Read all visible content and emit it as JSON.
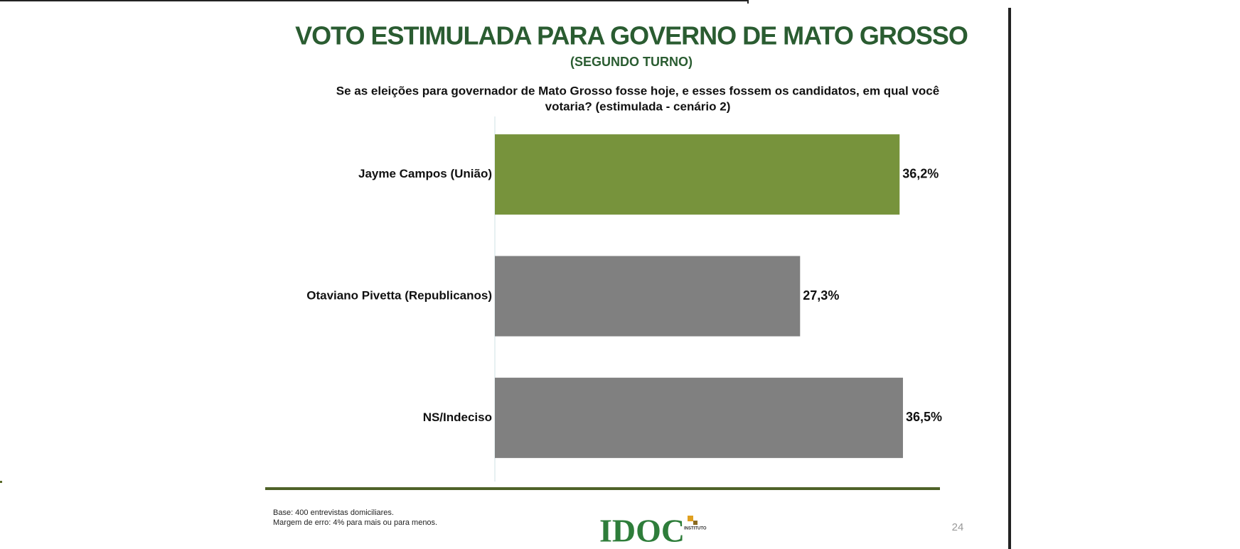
{
  "chart_data": {
    "type": "hbar",
    "title": "VOTO ESTIMULADA PARA GOVERNO DE MATO GROSSO",
    "subtitle": "(SEGUNDO TURNO)",
    "question": [
      "Se as eleições para governador de Mato Grosso fosse hoje, e esses fossem os candidatos, em qual você",
      "votaria? (estimulada - cenário 2)"
    ],
    "categories": [
      "Jayme Campos (União)",
      "Otaviano Pivetta (Republicanos)",
      "NS/Indeciso"
    ],
    "values": [
      36.2,
      27.3,
      36.5
    ],
    "value_labels": [
      "36,2%",
      "27,3%",
      "36,5%"
    ],
    "colors": [
      "#77933c",
      "#808080",
      "#808080"
    ],
    "xlim": [
      0,
      40
    ],
    "footnotes": [
      "Base: 400 entrevistas domiciliares.",
      "Margem de erro: 4% para mais ou para menos."
    ],
    "logo": "IDOC",
    "logo_sub": "INSTITUTO",
    "page_number": "24"
  }
}
